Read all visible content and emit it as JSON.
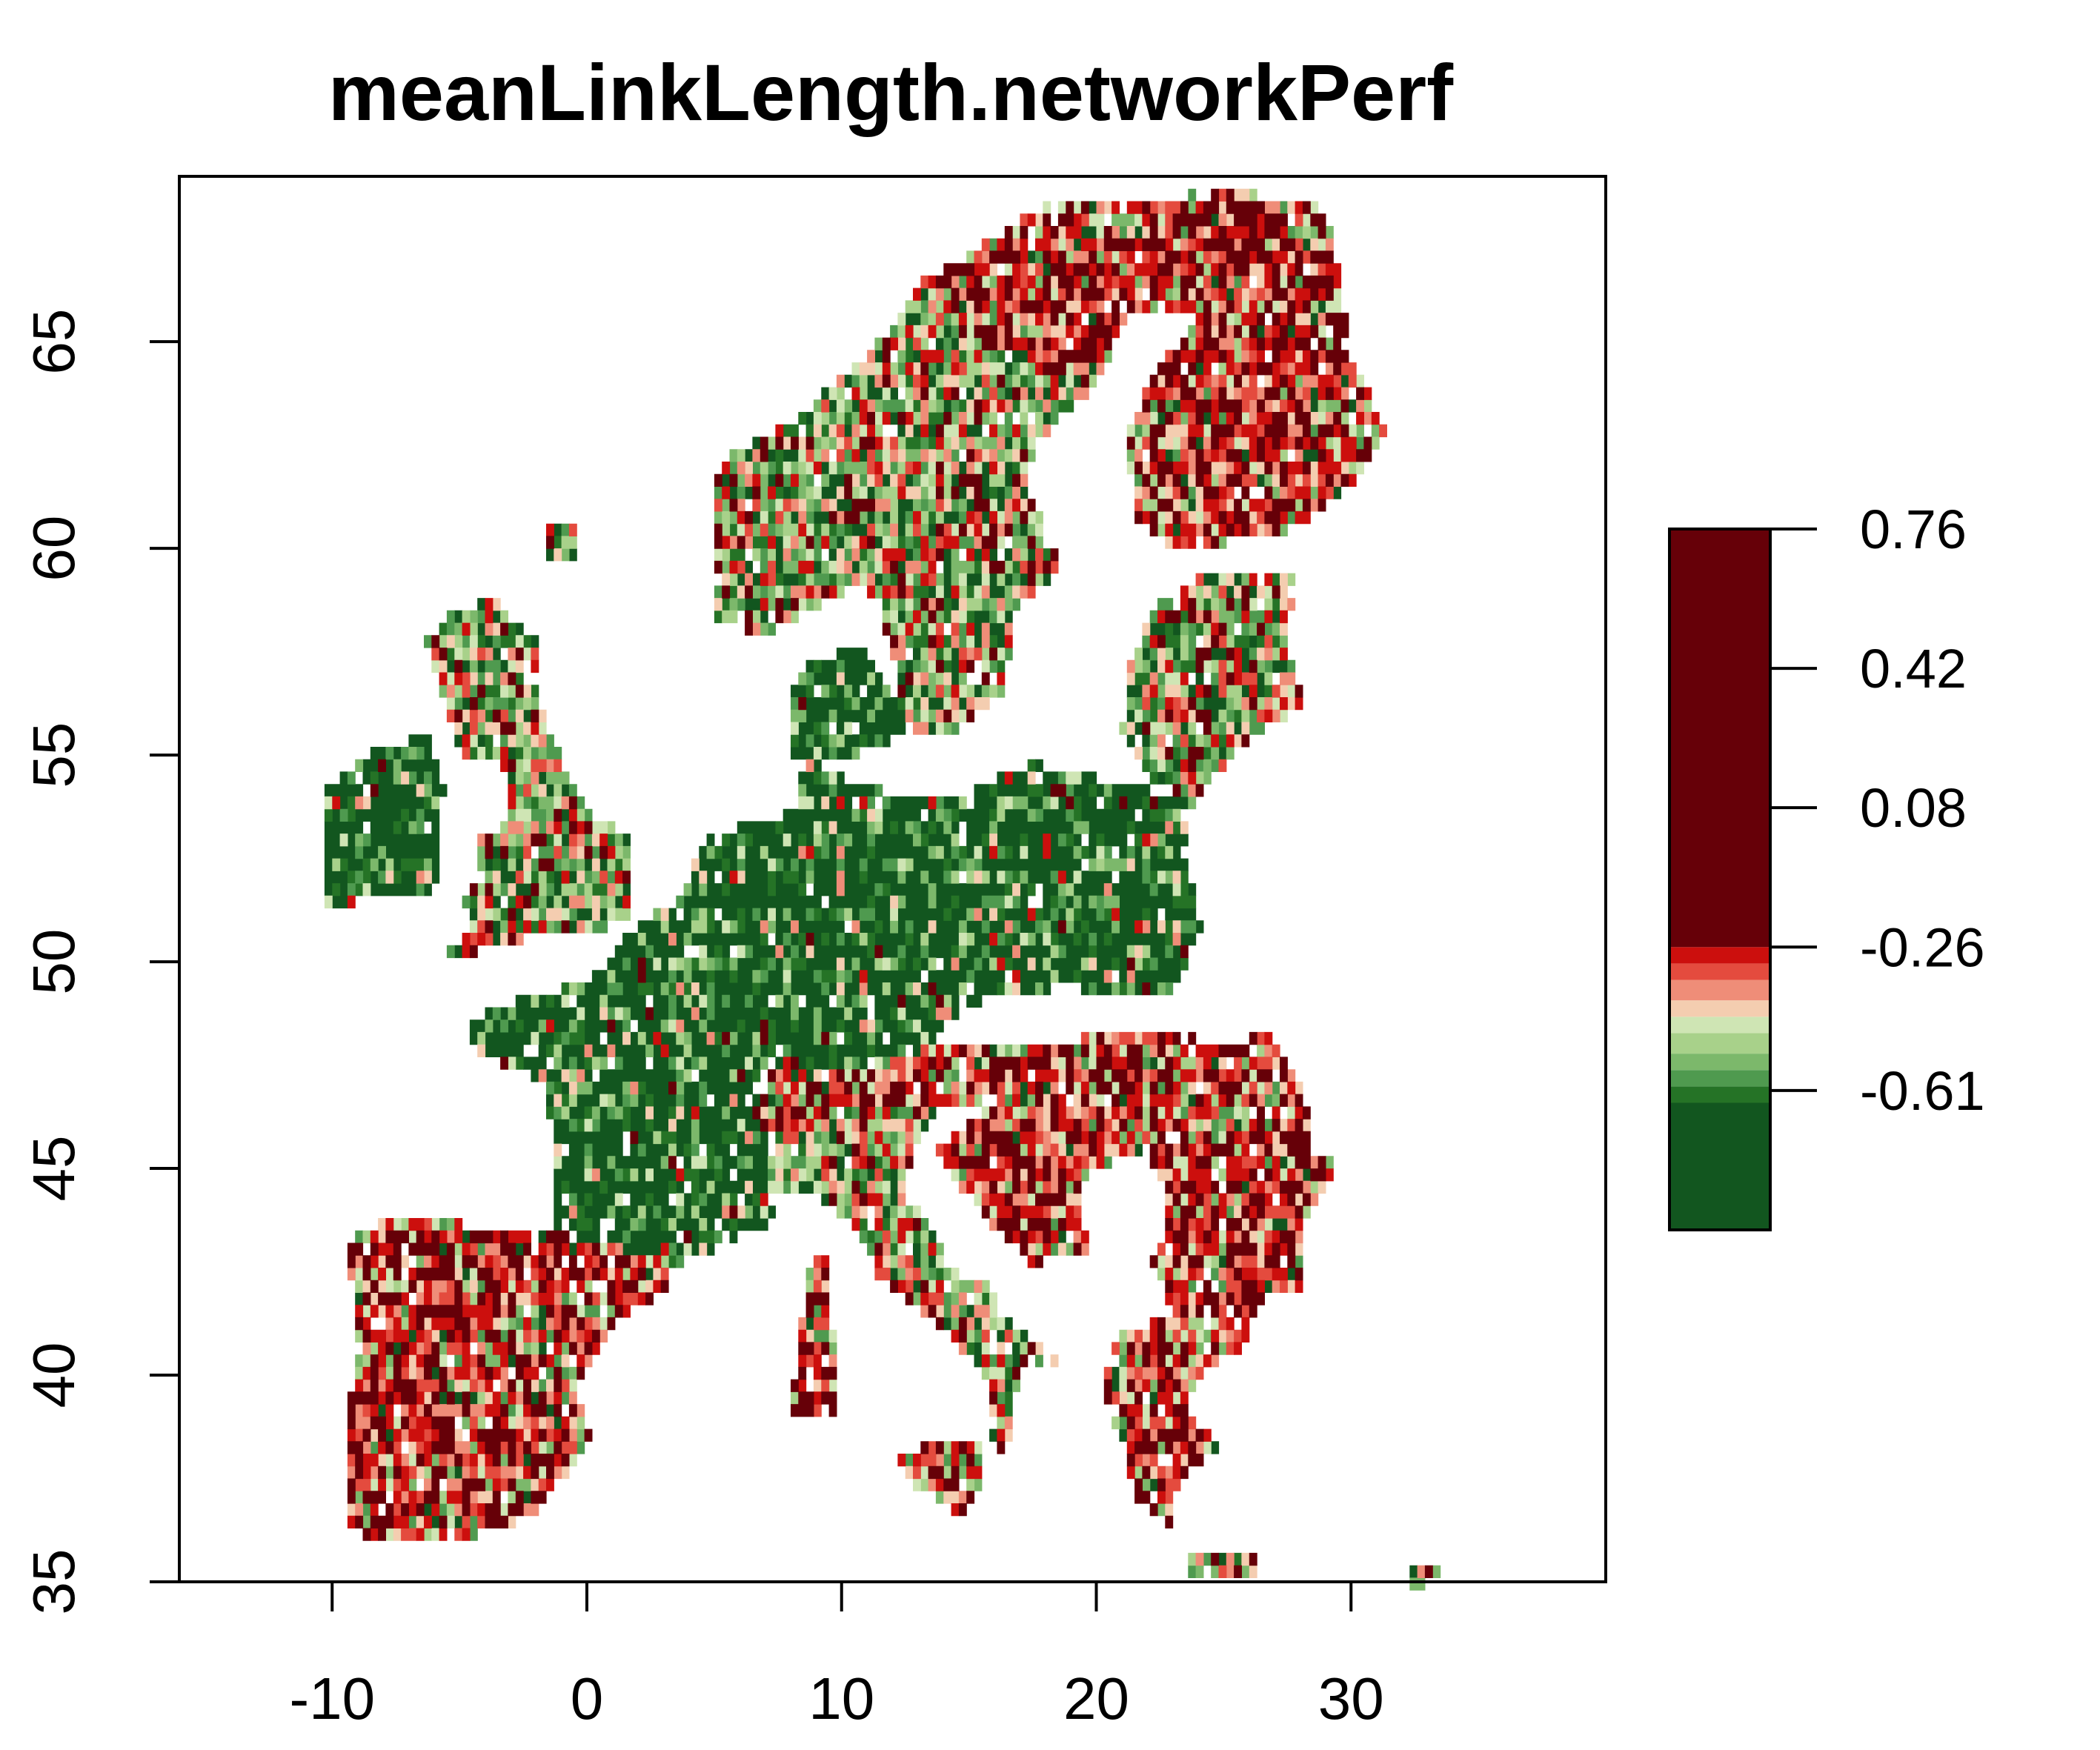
{
  "title": "meanLinkLength.networkPerf",
  "map": {
    "x_range": [
      -16,
      40
    ],
    "y_range": [
      35,
      69
    ],
    "x_ticks": [
      -10,
      0,
      10,
      20,
      30
    ],
    "x_tick_labels": [
      "-10",
      "0",
      "10",
      "20",
      "30"
    ],
    "y_ticks": [
      35,
      40,
      45,
      50,
      55,
      60,
      65
    ],
    "y_tick_labels": [
      "35",
      "40",
      "45",
      "50",
      "55",
      "60",
      "65"
    ],
    "background_color": "#ffffff",
    "raster_regions": [
      {
        "name": "Iceland-fragment",
        "bbox_lon": [
          -1.5,
          -0.5
        ],
        "bbox_lat": [
          59.5,
          60.5
        ],
        "mix": "mixed"
      },
      {
        "name": "Ireland",
        "bbox_lon": [
          -10,
          -5.8
        ],
        "bbox_lat": [
          51.5,
          55.5
        ],
        "mix": "green"
      },
      {
        "name": "Great Britain",
        "bbox_lon": [
          -6,
          2
        ],
        "bbox_lat": [
          50,
          58.8
        ],
        "mix": "mixed"
      },
      {
        "name": "Scotland",
        "bbox_lon": [
          -7,
          -1.5
        ],
        "bbox_lat": [
          55,
          58.5
        ],
        "mix": "red"
      },
      {
        "name": "Iberia",
        "bbox_lon": [
          -9.5,
          3.5
        ],
        "bbox_lat": [
          36,
          43.8
        ],
        "mix": "red"
      },
      {
        "name": "France",
        "bbox_lon": [
          -4.5,
          7.5
        ],
        "bbox_lat": [
          42.5,
          51
        ],
        "mix": "green"
      },
      {
        "name": "Benelux-Germany",
        "bbox_lon": [
          2.5,
          15
        ],
        "bbox_lat": [
          47.5,
          55
        ],
        "mix": "green"
      },
      {
        "name": "Poland-Czechia",
        "bbox_lon": [
          14,
          24
        ],
        "bbox_lat": [
          48.5,
          55
        ],
        "mix": "green"
      },
      {
        "name": "Denmark",
        "bbox_lon": [
          8,
          12.8
        ],
        "bbox_lat": [
          54.5,
          57.8
        ],
        "mix": "green"
      },
      {
        "name": "Norway-Sweden",
        "bbox_lon": [
          5,
          19
        ],
        "bbox_lat": [
          55.5,
          66
        ],
        "mix": "mixed"
      },
      {
        "name": "Finland-Lapland",
        "bbox_lon": [
          20.5,
          31.5
        ],
        "bbox_lat": [
          59.8,
          68.5
        ],
        "mix": "red"
      },
      {
        "name": "Baltics",
        "bbox_lon": [
          21,
          28.5
        ],
        "bbox_lat": [
          53.5,
          59.5
        ],
        "mix": "mixed"
      },
      {
        "name": "Alps",
        "bbox_lon": [
          6,
          17
        ],
        "bbox_lat": [
          45.5,
          48
        ],
        "mix": "red"
      },
      {
        "name": "Po valley",
        "bbox_lon": [
          6.5,
          12.5
        ],
        "bbox_lat": [
          44,
          46.5
        ],
        "mix": "mixed"
      },
      {
        "name": "Italy",
        "bbox_lon": [
          8,
          19
        ],
        "bbox_lat": [
          37.5,
          46
        ],
        "mix": "mixed"
      },
      {
        "name": "Sardinia-Corsica",
        "bbox_lon": [
          8,
          10
        ],
        "bbox_lat": [
          38.8,
          43
        ],
        "mix": "red"
      },
      {
        "name": "Sicily",
        "bbox_lon": [
          12.3,
          16
        ],
        "bbox_lat": [
          36.6,
          38.4
        ],
        "mix": "red"
      },
      {
        "name": "Hungary-Balkans",
        "bbox_lon": [
          15,
          23
        ],
        "bbox_lat": [
          44,
          49
        ],
        "mix": "red"
      },
      {
        "name": "Romania-Bulgaria",
        "bbox_lon": [
          21,
          30
        ],
        "bbox_lat": [
          41,
          48.5
        ],
        "mix": "red"
      },
      {
        "name": "Greece",
        "bbox_lon": [
          20,
          26.5
        ],
        "bbox_lat": [
          36.5,
          41.5
        ],
        "mix": "red"
      },
      {
        "name": "Crete",
        "bbox_lon": [
          23.5,
          26.5
        ],
        "bbox_lat": [
          34.9,
          35.6
        ],
        "mix": "mixed"
      },
      {
        "name": "Cyprus",
        "bbox_lon": [
          32,
          33.5
        ],
        "bbox_lat": [
          34.6,
          35.3
        ],
        "mix": "red"
      }
    ]
  },
  "legend": {
    "max": 0.76,
    "min": -0.95,
    "tick_values": [
      0.76,
      0.42,
      0.08,
      -0.26,
      -0.61
    ],
    "tick_labels": [
      "0.76",
      "0.42",
      "0.08",
      "-0.26",
      "-0.61"
    ],
    "color_bands": [
      {
        "from": -0.95,
        "to": -0.64,
        "color": "#12561f"
      },
      {
        "from": -0.64,
        "to": -0.6,
        "color": "#257326"
      },
      {
        "from": -0.6,
        "to": -0.56,
        "color": "#4f9a4f"
      },
      {
        "from": -0.56,
        "to": -0.52,
        "color": "#7cb86b"
      },
      {
        "from": -0.52,
        "to": -0.47,
        "color": "#a8d18a"
      },
      {
        "from": -0.47,
        "to": -0.43,
        "color": "#cfe5b4"
      },
      {
        "from": -0.43,
        "to": -0.39,
        "color": "#f4cdb0"
      },
      {
        "from": -0.39,
        "to": -0.34,
        "color": "#ef8d78"
      },
      {
        "from": -0.34,
        "to": -0.3,
        "color": "#e44b3e"
      },
      {
        "from": -0.3,
        "to": -0.26,
        "color": "#cc0f0d"
      },
      {
        "from": -0.26,
        "to": 0.76,
        "color": "#660008"
      }
    ]
  }
}
